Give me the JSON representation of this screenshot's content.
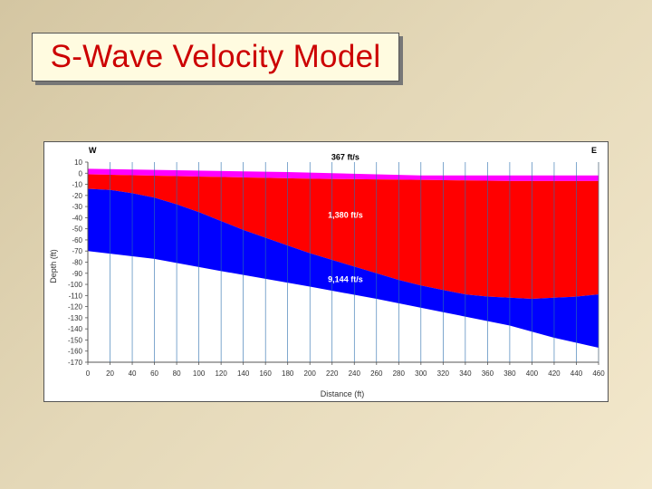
{
  "slide": {
    "title": "S-Wave Velocity Model"
  },
  "chart_data": {
    "type": "area",
    "title": "",
    "xlabel": "Distance (ft)",
    "ylabel": "Depth (ft)",
    "xlim": [
      0,
      460
    ],
    "ylim": [
      10,
      -170
    ],
    "x_ticks": [
      0,
      20,
      40,
      60,
      80,
      100,
      120,
      140,
      160,
      180,
      200,
      220,
      240,
      260,
      280,
      300,
      320,
      340,
      360,
      380,
      400,
      420,
      440,
      460
    ],
    "y_ticks": [
      10,
      0,
      -10,
      -20,
      -30,
      -40,
      -50,
      -60,
      -70,
      -80,
      -90,
      -100,
      -110,
      -120,
      -130,
      -140,
      -150,
      -160,
      -170
    ],
    "y_tick_labels": [
      "10",
      "0",
      "-10",
      "-20",
      "-30",
      "-40",
      "-50",
      "-60",
      "-70",
      "-80",
      "-90",
      "-100",
      "-110",
      "-120",
      "-130",
      "-140",
      "-150",
      "-160",
      "-170"
    ],
    "grid": "vertical",
    "direction_labels": {
      "left": "W",
      "right": "E"
    },
    "layers": [
      {
        "name": "367 ft/s",
        "color": "#ff00ff",
        "top": [
          [
            0,
            4
          ],
          [
            180,
            1
          ],
          [
            300,
            -2
          ],
          [
            380,
            -2
          ],
          [
            460,
            -2
          ]
        ],
        "bottom": [
          [
            0,
            -1
          ],
          [
            100,
            -3
          ],
          [
            200,
            -5
          ],
          [
            300,
            -6
          ],
          [
            380,
            -7
          ],
          [
            460,
            -7
          ]
        ]
      },
      {
        "name": "1,380 ft/s",
        "color": "#ff0000",
        "top": [
          [
            0,
            -1
          ],
          [
            100,
            -3
          ],
          [
            200,
            -5
          ],
          [
            300,
            -6
          ],
          [
            380,
            -7
          ],
          [
            460,
            -7
          ]
        ],
        "bottom": [
          [
            0,
            -14
          ],
          [
            20,
            -15
          ],
          [
            40,
            -18
          ],
          [
            60,
            -22
          ],
          [
            80,
            -28
          ],
          [
            100,
            -35
          ],
          [
            120,
            -43
          ],
          [
            140,
            -51
          ],
          [
            160,
            -58
          ],
          [
            180,
            -65
          ],
          [
            200,
            -72
          ],
          [
            220,
            -78
          ],
          [
            240,
            -84
          ],
          [
            260,
            -90
          ],
          [
            280,
            -96
          ],
          [
            300,
            -101
          ],
          [
            320,
            -105
          ],
          [
            340,
            -109
          ],
          [
            360,
            -111
          ],
          [
            380,
            -112
          ],
          [
            400,
            -113
          ],
          [
            420,
            -112
          ],
          [
            440,
            -111
          ],
          [
            460,
            -109
          ]
        ]
      },
      {
        "name": "9,144 ft/s",
        "color": "#0000ff",
        "top": [
          [
            0,
            -14
          ],
          [
            20,
            -15
          ],
          [
            40,
            -18
          ],
          [
            60,
            -22
          ],
          [
            80,
            -28
          ],
          [
            100,
            -35
          ],
          [
            120,
            -43
          ],
          [
            140,
            -51
          ],
          [
            160,
            -58
          ],
          [
            180,
            -65
          ],
          [
            200,
            -72
          ],
          [
            220,
            -78
          ],
          [
            240,
            -84
          ],
          [
            260,
            -90
          ],
          [
            280,
            -96
          ],
          [
            300,
            -101
          ],
          [
            320,
            -105
          ],
          [
            340,
            -109
          ],
          [
            360,
            -111
          ],
          [
            380,
            -112
          ],
          [
            400,
            -113
          ],
          [
            420,
            -112
          ],
          [
            440,
            -111
          ],
          [
            460,
            -109
          ]
        ],
        "bottom": [
          [
            0,
            -70
          ],
          [
            60,
            -77
          ],
          [
            120,
            -88
          ],
          [
            200,
            -102
          ],
          [
            260,
            -113
          ],
          [
            320,
            -125
          ],
          [
            380,
            -137
          ],
          [
            420,
            -148
          ],
          [
            460,
            -157
          ]
        ]
      }
    ],
    "layer_labels": [
      {
        "text": "367 ft/s",
        "x": 232,
        "y": 12,
        "color": "#000000"
      },
      {
        "text": "1,380 ft/s",
        "x": 232,
        "y": -40,
        "color": "#ffffff"
      },
      {
        "text": "9,144 ft/s",
        "x": 232,
        "y": -98,
        "color": "#ffffff"
      }
    ]
  }
}
